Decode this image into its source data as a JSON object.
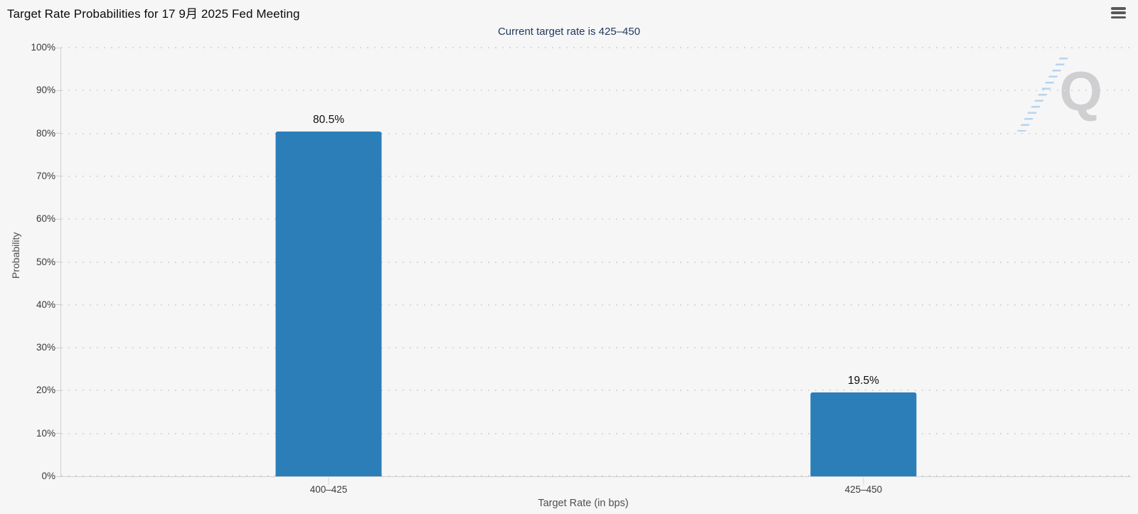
{
  "header": {
    "menu_icon": "hamburger-menu"
  },
  "watermark": {
    "letter": "Q"
  },
  "chart_data": {
    "type": "bar",
    "title": "Target Rate Probabilities for 17 9月 2025 Fed Meeting",
    "subtitle": "Current target rate is 425–450",
    "categories": [
      "400–425",
      "425–450"
    ],
    "values": [
      80.5,
      19.5
    ],
    "value_labels": [
      "80.5%",
      "19.5%"
    ],
    "xlabel": "Target Rate (in bps)",
    "ylabel": "Probability",
    "ylim": [
      0,
      100
    ],
    "ytick_step": 10,
    "ytick_suffix": "%",
    "grid": "horizontal-dotted",
    "legend": "none",
    "bar_color": "#2b7eb8",
    "axis_color": "#cfcfcf",
    "subtitle_color": "#24395c"
  }
}
